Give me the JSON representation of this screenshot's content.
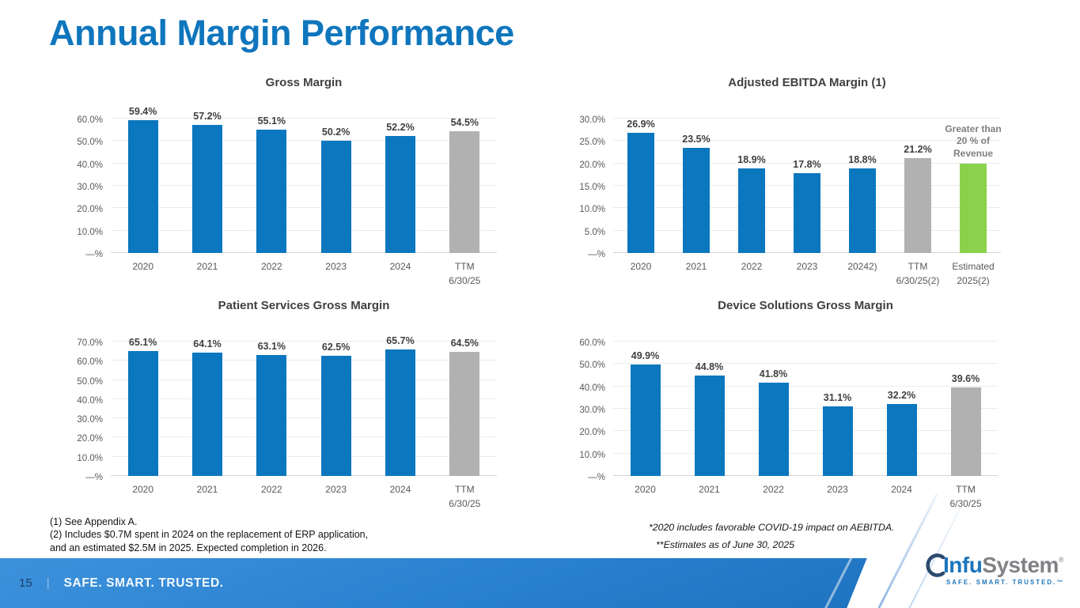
{
  "slide": {
    "title": "Annual Margin Performance",
    "page_number": "15",
    "footer_separator": "|",
    "footer_tagline": "SAFE. SMART. TRUSTED.",
    "footnotes_left": [
      "(1) See Appendix A.",
      "(2) Includes $0.7M spent in 2024 on the replacement of ERP application,",
      "and an estimated $2.5M in 2025. Expected completion in 2026."
    ],
    "footnotes_right": [
      "*2020 includes favorable COVID-19 impact on AEBITDA.",
      "**Estimates as of June 30, 2025"
    ],
    "logo": {
      "brand_part1": "Infu",
      "brand_part2": "System",
      "registered_mark": "®",
      "tagline": "SAFE. SMART. TRUSTED.™"
    }
  },
  "colors": {
    "bar_blue": "#0B77BE",
    "bar_gray": "#B1B1B1",
    "bar_green": "#8CD14B",
    "title_blue": "#0F76BD",
    "footer_blue_dark": "#1A6DB9",
    "footer_blue_light": "#3E92DC",
    "axis_text": "#595959",
    "data_label_text": "#3F3F3F"
  },
  "chart_data": [
    {
      "type": "bar",
      "title": "Gross Margin",
      "categories": [
        "2020",
        "2021",
        "2022",
        "2023",
        "2024",
        "TTM\n6/30/25"
      ],
      "values": [
        59.4,
        57.2,
        55.1,
        50.2,
        52.2,
        54.5
      ],
      "data_labels": [
        "59.4%",
        "57.2%",
        "55.1%",
        "50.2%",
        "52.2%",
        "54.5%"
      ],
      "bar_colors": [
        "blue",
        "blue",
        "blue",
        "blue",
        "blue",
        "gray"
      ],
      "y_ticks": [
        {
          "label": "—%",
          "value": 0
        },
        {
          "label": "10.0%",
          "value": 10
        },
        {
          "label": "20.0%",
          "value": 20
        },
        {
          "label": "30.0%",
          "value": 30
        },
        {
          "label": "40.0%",
          "value": 40
        },
        {
          "label": "50.0%",
          "value": 50
        },
        {
          "label": "60.0%",
          "value": 60
        }
      ],
      "xlabel": "",
      "ylabel": "",
      "ylim": [
        0,
        60
      ],
      "grid": true,
      "legend": "none"
    },
    {
      "type": "bar",
      "title": "Adjusted EBITDA Margin (1)",
      "categories": [
        "2020",
        "2021",
        "2022",
        "2023",
        "20242)",
        "TTM\n6/30/25(2)",
        "Estimated\n2025(2)"
      ],
      "values": [
        26.9,
        23.5,
        18.9,
        17.8,
        18.8,
        21.2,
        20.0
      ],
      "data_labels": [
        "26.9%",
        "23.5%",
        "18.9%",
        "17.8%",
        "18.8%",
        "21.2%",
        "Greater than\n20 % of\nRevenue"
      ],
      "bar_colors": [
        "blue",
        "blue",
        "blue",
        "blue",
        "blue",
        "gray",
        "green"
      ],
      "y_ticks": [
        {
          "label": "—%",
          "value": 0
        },
        {
          "label": "5.0%",
          "value": 5
        },
        {
          "label": "10.0%",
          "value": 10
        },
        {
          "label": "15.0%",
          "value": 15
        },
        {
          "label": "20.0%",
          "value": 20
        },
        {
          "label": "25.0%",
          "value": 25
        },
        {
          "label": "30.0%",
          "value": 30
        }
      ],
      "xlabel": "",
      "ylabel": "",
      "ylim": [
        0,
        30
      ],
      "grid": true,
      "legend": "none"
    },
    {
      "type": "bar",
      "title": "Patient Services Gross Margin",
      "categories": [
        "2020",
        "2021",
        "2022",
        "2023",
        "2024",
        "TTM\n6/30/25"
      ],
      "values": [
        65.1,
        64.1,
        63.1,
        62.5,
        65.7,
        64.5
      ],
      "data_labels": [
        "65.1%",
        "64.1%",
        "63.1%",
        "62.5%",
        "65.7%",
        "64.5%"
      ],
      "bar_colors": [
        "blue",
        "blue",
        "blue",
        "blue",
        "blue",
        "gray"
      ],
      "y_ticks": [
        {
          "label": "—%",
          "value": 0
        },
        {
          "label": "10.0%",
          "value": 10
        },
        {
          "label": "20.0%",
          "value": 20
        },
        {
          "label": "30.0%",
          "value": 30
        },
        {
          "label": "40.0%",
          "value": 40
        },
        {
          "label": "50.0%",
          "value": 50
        },
        {
          "label": "60.0%",
          "value": 60
        },
        {
          "label": "70.0%",
          "value": 70
        }
      ],
      "xlabel": "",
      "ylabel": "",
      "ylim": [
        0,
        70
      ],
      "grid": true,
      "legend": "none"
    },
    {
      "type": "bar",
      "title": "Device Solutions Gross Margin",
      "categories": [
        "2020",
        "2021",
        "2022",
        "2023",
        "2024",
        "TTM\n6/30/25"
      ],
      "values": [
        49.9,
        44.8,
        41.8,
        31.1,
        32.2,
        39.6
      ],
      "data_labels": [
        "49.9%",
        "44.8%",
        "41.8%",
        "31.1%",
        "32.2%",
        "39.6%"
      ],
      "bar_colors": [
        "blue",
        "blue",
        "blue",
        "blue",
        "blue",
        "gray"
      ],
      "y_ticks": [
        {
          "label": "—%",
          "value": 0
        },
        {
          "label": "10.0%",
          "value": 10
        },
        {
          "label": "20.0%",
          "value": 20
        },
        {
          "label": "30.0%",
          "value": 30
        },
        {
          "label": "40.0%",
          "value": 40
        },
        {
          "label": "50.0%",
          "value": 50
        },
        {
          "label": "60.0%",
          "value": 60
        }
      ],
      "xlabel": "",
      "ylabel": "",
      "ylim": [
        0,
        60
      ],
      "grid": true,
      "legend": "none"
    }
  ]
}
